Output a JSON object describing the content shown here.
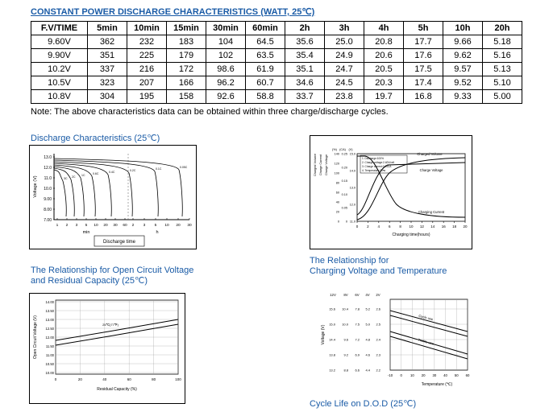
{
  "page": {
    "title": "CONSTANT POWER DISCHARGE CHARACTERISTICS (WATT, 25℃)",
    "note": "Note: The above characteristics data can be obtained within three charge/discharge cycles."
  },
  "table": {
    "columns": [
      "F.V/TIME",
      "5min",
      "10min",
      "15min",
      "30min",
      "60min",
      "2h",
      "3h",
      "4h",
      "5h",
      "10h",
      "20h"
    ],
    "rows": [
      {
        "label": "9.60V",
        "values": [
          "362",
          "232",
          "183",
          "104",
          "64.5",
          "35.6",
          "25.0",
          "20.8",
          "17.7",
          "9.66",
          "5.18"
        ]
      },
      {
        "label": "9.90V",
        "values": [
          "351",
          "225",
          "179",
          "102",
          "63.5",
          "35.4",
          "24.9",
          "20.6",
          "17.6",
          "9.62",
          "5.16"
        ]
      },
      {
        "label": "10.2V",
        "values": [
          "337",
          "216",
          "172",
          "98.6",
          "61.9",
          "35.1",
          "24.7",
          "20.5",
          "17.5",
          "9.57",
          "5.13"
        ]
      },
      {
        "label": "10.5V",
        "values": [
          "323",
          "207",
          "166",
          "96.2",
          "60.7",
          "34.6",
          "24.5",
          "20.3",
          "17.4",
          "9.52",
          "5.10"
        ]
      },
      {
        "label": "10.8V",
        "values": [
          "304",
          "195",
          "158",
          "92.6",
          "58.8",
          "33.7",
          "23.8",
          "19.7",
          "16.8",
          "9.33",
          "5.00"
        ]
      }
    ]
  },
  "sections": {
    "discharge_title": "Discharge Characteristics (25℃)",
    "ocv_title_line1": "The Relationship for Open Circuit Voltage",
    "ocv_title_line2": "and Residual Capacity (25℃)",
    "charging_title_line1": "The Relationship for",
    "charging_title_line2": "Charging Voltage and Temperature",
    "cycle_title": "Cycle Life on D.O.D (25℃)"
  },
  "chart_data": [
    {
      "id": "discharge_characteristics",
      "type": "line",
      "title": "Discharge Characteristics (25℃)",
      "xlabel": "Discharge time",
      "ylabel": "Voltage (V)",
      "x_units": [
        "min",
        "h"
      ],
      "yticks": [
        "13.0",
        "12.0",
        "11.0",
        "10.0",
        "9.00",
        "8.00",
        "7.00"
      ],
      "xticks_min": [
        "1",
        "2",
        "3",
        "5",
        "10",
        "20",
        "30",
        "60"
      ],
      "xticks_h": [
        "2",
        "3",
        "5",
        "10",
        "20",
        "30"
      ],
      "series": [
        {
          "name": "3C"
        },
        {
          "name": "2C"
        },
        {
          "name": "1C"
        },
        {
          "name": "0.6C"
        },
        {
          "name": "0.4C"
        },
        {
          "name": "0.2C"
        },
        {
          "name": "0.1C"
        },
        {
          "name": "0.05C"
        }
      ]
    },
    {
      "id": "charge_characteristics",
      "type": "line",
      "xlabel": "Charging time(hours)",
      "xticks": [
        "0",
        "2",
        "4",
        "6",
        "8",
        "10",
        "12",
        "14",
        "16",
        "18",
        "20"
      ],
      "axes": [
        {
          "name": "Charged Volume",
          "unit": "(%)",
          "ticks": [
            "140",
            "120",
            "100",
            "80",
            "60",
            "40",
            "20",
            "0"
          ]
        },
        {
          "name": "Charge Current",
          "unit": "(CA)",
          "ticks": [
            "0.25",
            "0.20",
            "0.15",
            "0.10",
            "0.05",
            "0"
          ]
        },
        {
          "name": "Charge Voltage",
          "unit": "(V)",
          "ticks": [
            "15.0",
            "14.0",
            "13.0",
            "12.0",
            "11.0"
          ]
        }
      ],
      "curve_labels": [
        "Charged Volume",
        "Charge Voltage",
        "Charging Current"
      ],
      "legend": [
        "1. Discharge:100%",
        "2. Charge voltage:2.40V/cell",
        "3. Charge current:0.25CA",
        "4. Temperature:25℃"
      ]
    },
    {
      "id": "open_circuit_voltage",
      "type": "line",
      "xlabel": "Residual Capacity (%)",
      "ylabel": "Open Circuit Voltage (V)",
      "yticks": [
        "14.00",
        "13.50",
        "13.00",
        "12.50",
        "12.00",
        "11.50",
        "11.00",
        "10.50",
        "10.00"
      ],
      "xticks": [
        "0",
        "20",
        "40",
        "60",
        "80",
        "100"
      ],
      "annotation": "25℃(77℉)",
      "series": [
        {
          "name": "upper",
          "points": [
            [
              0,
              11.95
            ],
            [
              100,
              13.0
            ]
          ]
        },
        {
          "name": "lower",
          "points": [
            [
              0,
              11.7
            ],
            [
              100,
              12.75
            ]
          ]
        }
      ]
    },
    {
      "id": "charging_voltage_temperature",
      "type": "line",
      "xlabel": "Temperature (℃)",
      "ylabel": "Voltage (V)",
      "voltage_columns": [
        "12V",
        "8V",
        "6V",
        "4V",
        "2V"
      ],
      "scale_rows": [
        [
          "15.6",
          "10.4",
          "7.8",
          "5.2",
          "2.6"
        ],
        [
          "15.0",
          "10.0",
          "7.5",
          "5.0",
          "2.5"
        ],
        [
          "14.4",
          "9.6",
          "7.2",
          "4.8",
          "2.4"
        ],
        [
          "13.8",
          "9.2",
          "6.9",
          "4.6",
          "2.3"
        ],
        [
          "13.2",
          "8.8",
          "6.6",
          "4.4",
          "2.2"
        ]
      ],
      "xticks": [
        "-10",
        "0",
        "10",
        "20",
        "30",
        "40",
        "50",
        "60"
      ],
      "series": [
        {
          "name": "Cycle use"
        },
        {
          "name": "Trickle use"
        }
      ]
    }
  ]
}
